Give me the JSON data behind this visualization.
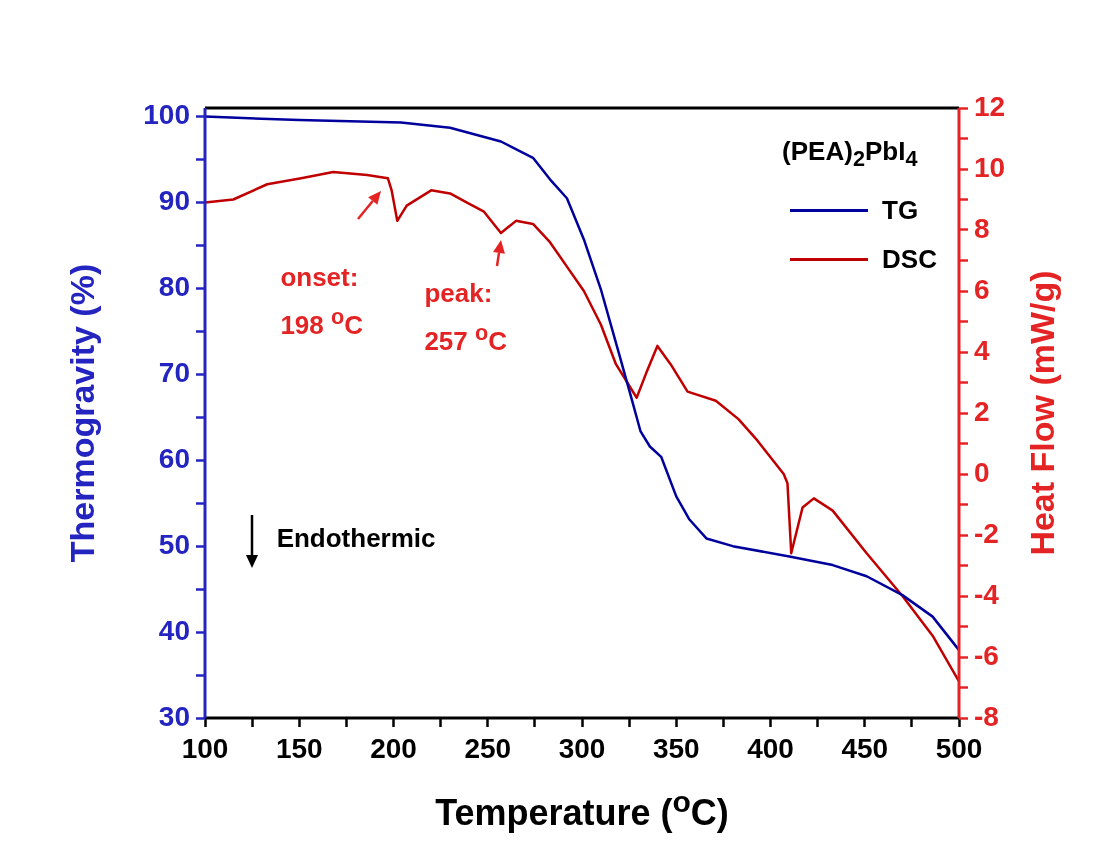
{
  "chart_data": {
    "type": "line",
    "xlabel": "Temperature ($^{o}$C)",
    "ylabel": "Thermogravity (%)",
    "y2label": "Heat Flow (mW/g)",
    "legend_title": "(PEA)$_{2}$PbI$_{4}$",
    "annotations": [
      "onset: 198 $^{o}$C",
      "peak: 257 $^{o}$C",
      "Endothermic"
    ],
    "xlim": [
      100,
      500
    ],
    "xticks": [
      100,
      {
        "value": 125,
        "label": null
      },
      150,
      {
        "value": 175,
        "label": null
      },
      200,
      {
        "value": 225,
        "label": null
      },
      250,
      {
        "value": 275,
        "label": null
      },
      300,
      {
        "value": 325,
        "label": null
      },
      350,
      {
        "value": 375,
        "label": null
      },
      400,
      {
        "value": 425,
        "label": null
      },
      450,
      {
        "value": 475,
        "label": null
      },
      500
    ],
    "ylim": [
      30,
      101
    ],
    "yticks": [
      30,
      {
        "value": 35,
        "label": null
      },
      40,
      {
        "value": 45,
        "label": null
      },
      50,
      {
        "value": 55,
        "label": null
      },
      60,
      {
        "value": 65,
        "label": null
      },
      70,
      {
        "value": 75,
        "label": null
      },
      80,
      {
        "value": 85,
        "label": null
      },
      90,
      {
        "value": 95,
        "label": null
      },
      100
    ],
    "y2lim": [
      -8,
      12
    ],
    "y2ticks": [
      -8,
      {
        "value": -7,
        "label": null
      },
      -6,
      {
        "value": -5,
        "label": null
      },
      -4,
      {
        "value": -3,
        "label": null
      },
      -2,
      {
        "value": -1,
        "label": null
      },
      0,
      {
        "value": 1,
        "label": null
      },
      2,
      {
        "value": 3,
        "label": null
      },
      4,
      {
        "value": 5,
        "label": null
      },
      6,
      {
        "value": 7,
        "label": null
      },
      8,
      {
        "value": 9,
        "label": null
      },
      10,
      {
        "value": 11,
        "label": null
      },
      12
    ],
    "legend": "top right",
    "marker": "none",
    "line_style": "solid",
    "series": [
      {
        "name": "TG",
        "color": "#00009c",
        "x": [
          100,
          150,
          204,
          230,
          257,
          274,
          283,
          292,
          301,
          310,
          319,
          326,
          331,
          336,
          342,
          350,
          357,
          366,
          380,
          410,
          433,
          451,
          470,
          486,
          500
        ],
        "values": [
          100.0,
          99.6,
          99.3,
          98.7,
          97.1,
          95.2,
          92.7,
          90.5,
          85.7,
          79.9,
          72.9,
          67.4,
          63.4,
          61.6,
          60.4,
          55.8,
          53.1,
          50.9,
          50.0,
          48.8,
          47.8,
          46.5,
          44.3,
          41.8,
          37.9
        ]
      },
      {
        "name": "DSC",
        "color": "#c00000",
        "axis": "y2",
        "x": [
          100,
          115,
          133,
          151,
          168,
          186,
          197,
          199,
          202,
          207,
          220,
          230,
          239,
          248,
          257,
          265,
          274,
          283,
          292,
          301,
          310,
          318,
          329,
          334,
          340,
          347,
          356,
          371,
          383,
          393,
          407,
          409,
          411,
          417,
          423,
          433,
          451,
          470,
          486,
          500
        ],
        "values": [
          8.9,
          9.0,
          9.5,
          9.7,
          9.9,
          9.8,
          9.7,
          9.3,
          8.3,
          8.8,
          9.3,
          9.2,
          8.9,
          8.6,
          7.9,
          8.3,
          8.2,
          7.6,
          6.8,
          6.0,
          4.9,
          3.6,
          2.5,
          3.3,
          4.2,
          3.6,
          2.7,
          2.4,
          1.8,
          1.1,
          0.0,
          -0.3,
          -2.6,
          -1.1,
          -0.8,
          -1.2,
          -2.6,
          -4.0,
          -5.3,
          -6.8
        ]
      }
    ]
  }
}
